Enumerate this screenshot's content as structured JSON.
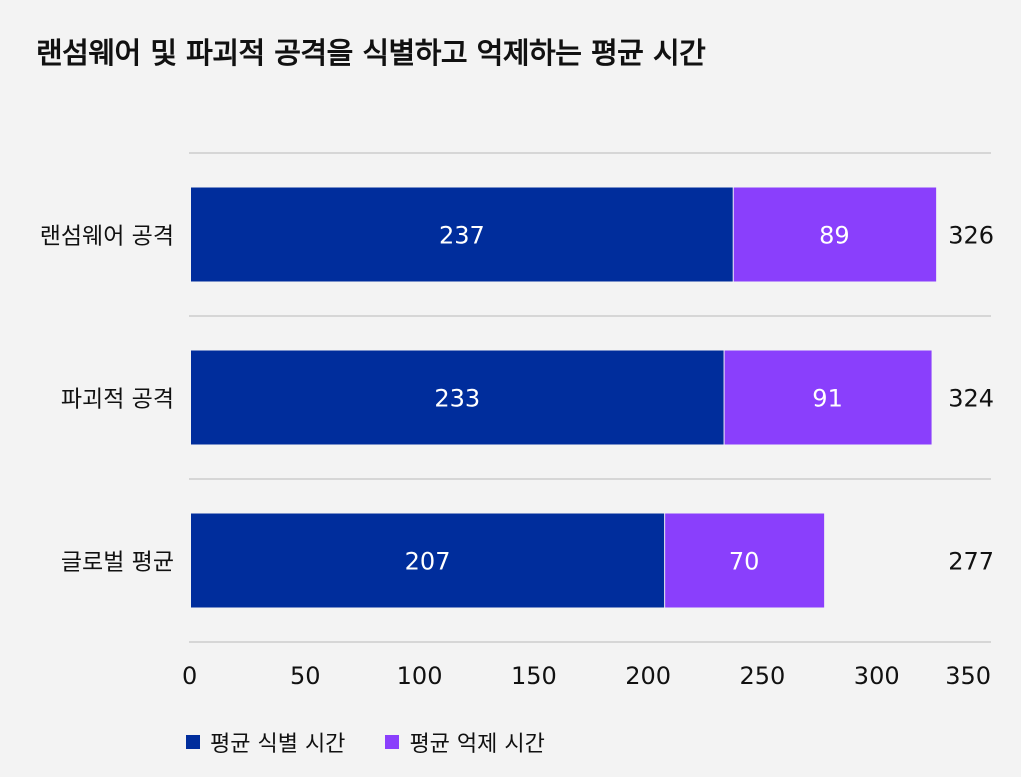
{
  "title": "랜섬웨어 및 파괴적 공격을 식별하고 억제하는 평균 시간",
  "colors": {
    "background": "#f3f3f3",
    "grid": "#cccccc",
    "label_text": "#111111",
    "bar_text": "#ffffff"
  },
  "chart_data": {
    "type": "bar",
    "orientation": "horizontal",
    "stacked": true,
    "title": "랜섬웨어 및 파괴적 공격을 식별하고 억제하는 평균 시간",
    "categories": [
      "랜섬웨어 공격",
      "파괴적 공격",
      "글로벌 평균"
    ],
    "series": [
      {
        "name": "평균 식별 시간",
        "values": [
          237,
          233,
          207
        ],
        "color": "#002d9c"
      },
      {
        "name": "평균 억제 시간",
        "values": [
          89,
          91,
          70
        ],
        "color": "#8a3ffc"
      }
    ],
    "totals": [
      326,
      324,
      277
    ],
    "xlim": [
      0,
      350
    ],
    "xticks": [
      0,
      50,
      100,
      150,
      200,
      250,
      300,
      350
    ],
    "grid": true,
    "legend_position": "bottom-left"
  }
}
